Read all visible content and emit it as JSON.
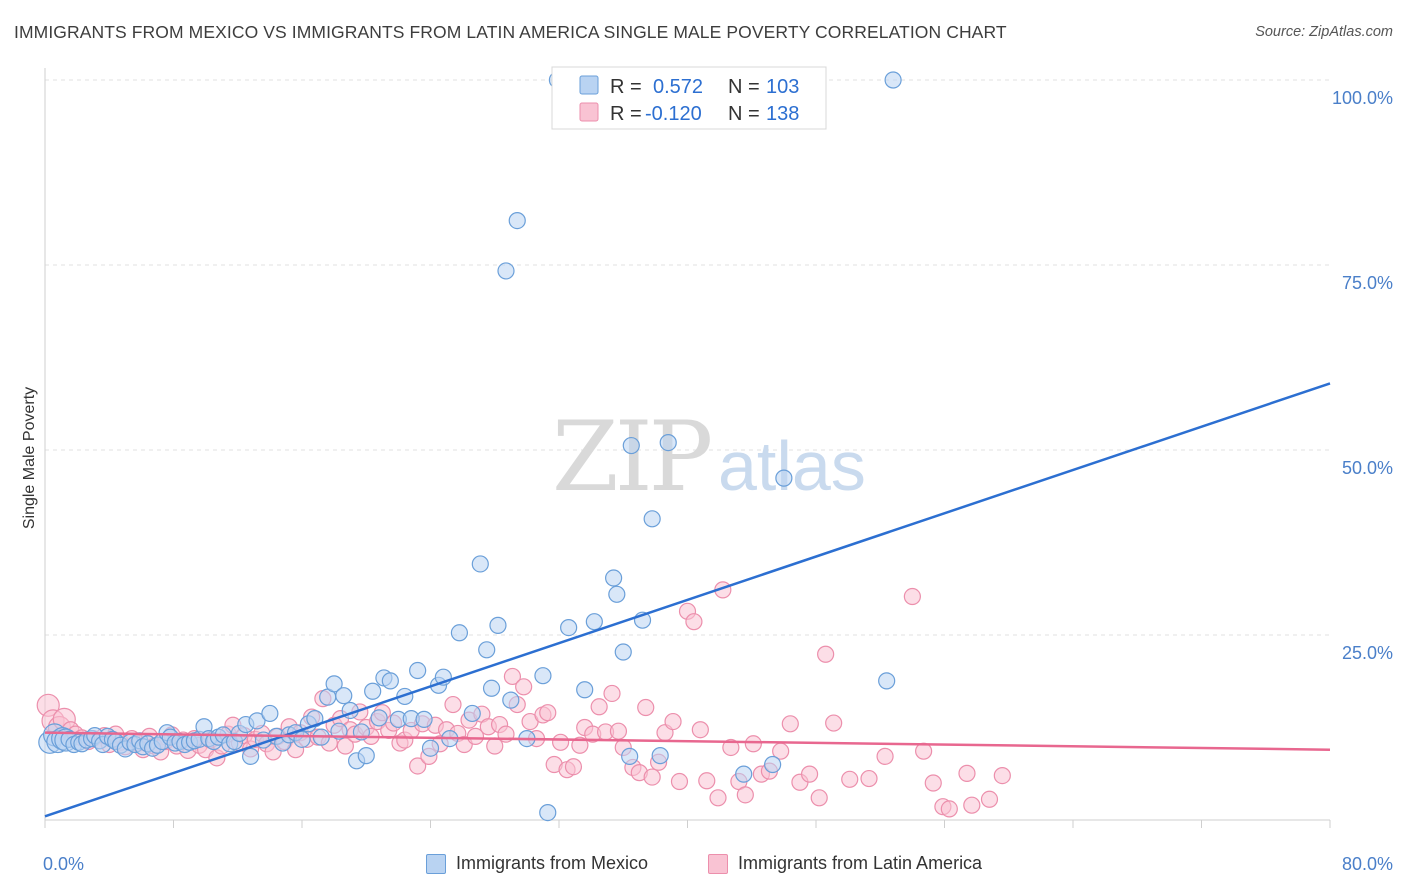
{
  "header": {
    "title": "IMMIGRANTS FROM MEXICO VS IMMIGRANTS FROM LATIN AMERICA SINGLE MALE POVERTY CORRELATION CHART",
    "source": "Source: ZipAtlas.com"
  },
  "watermark": {
    "zip": "ZIP",
    "atlas": "atlas"
  },
  "colors": {
    "blue_fill": "#b9d3f2",
    "blue_stroke": "#6a9fd9",
    "blue_line": "#2c6fd1",
    "pink_fill": "#f9c3d3",
    "pink_stroke": "#ec8fac",
    "pink_line": "#e8678f",
    "tick_text": "#4a7fc9",
    "grid": "#e2e2e2"
  },
  "legend_top": {
    "rows": [
      {
        "r_label": "R =",
        "r_value": "0.572",
        "n_label": "N =",
        "n_value": "103"
      },
      {
        "r_label": "R =",
        "r_value": "-0.120",
        "n_label": "N =",
        "n_value": "138"
      }
    ]
  },
  "bottom_legend": [
    "Immigrants from Mexico",
    "Immigrants from Latin America"
  ],
  "chart_data": {
    "type": "scatter",
    "title": "IMMIGRANTS FROM MEXICO VS IMMIGRANTS FROM LATIN AMERICA SINGLE MALE POVERTY CORRELATION CHART",
    "xlabel": "",
    "ylabel": "Single Male Poverty",
    "xlim": [
      0,
      80
    ],
    "ylim": [
      0,
      100
    ],
    "x_ticks_labeled": [
      "0.0%",
      "80.0%"
    ],
    "y_ticks_labeled": [
      "25.0%",
      "50.0%",
      "75.0%",
      "100.0%"
    ],
    "y_tick_values": [
      25,
      50,
      75,
      100
    ],
    "x_tick_values": [
      0,
      8,
      16,
      24,
      32,
      40,
      48,
      56,
      64,
      72,
      80
    ],
    "grid": "horizontal dashed",
    "legend_position": "top-center",
    "series": [
      {
        "name": "Immigrants from Mexico",
        "color": "#b9d3f2",
        "R": 0.572,
        "N": 103,
        "trend": {
          "x": [
            0,
            80
          ],
          "y": [
            0.5,
            59.0
          ]
        },
        "points": [
          [
            0.3,
            10.5
          ],
          [
            0.6,
            11.5
          ],
          [
            0.8,
            10.6
          ],
          [
            1.1,
            11.0
          ],
          [
            1.3,
            10.8
          ],
          [
            1.5,
            10.9
          ],
          [
            1.8,
            10.2
          ],
          [
            2.1,
            10.5
          ],
          [
            2.3,
            10.3
          ],
          [
            2.6,
            10.8
          ],
          [
            2.9,
            11.0
          ],
          [
            3.1,
            11.4
          ],
          [
            3.4,
            10.7
          ],
          [
            3.6,
            10.2
          ],
          [
            3.9,
            11.3
          ],
          [
            4.2,
            10.9
          ],
          [
            4.4,
            10.6
          ],
          [
            4.7,
            10.1
          ],
          [
            5.0,
            9.6
          ],
          [
            5.3,
            10.5
          ],
          [
            5.6,
            10.2
          ],
          [
            5.9,
            10.7
          ],
          [
            6.1,
            9.9
          ],
          [
            6.4,
            10.3
          ],
          [
            6.7,
            9.7
          ],
          [
            7.0,
            10.1
          ],
          [
            7.3,
            10.6
          ],
          [
            7.6,
            11.8
          ],
          [
            7.8,
            11.2
          ],
          [
            8.1,
            10.4
          ],
          [
            8.4,
            10.6
          ],
          [
            8.7,
            10.2
          ],
          [
            9.0,
            10.5
          ],
          [
            9.3,
            10.7
          ],
          [
            9.6,
            10.9
          ],
          [
            9.9,
            12.6
          ],
          [
            10.2,
            11.0
          ],
          [
            10.5,
            10.6
          ],
          [
            10.8,
            11.2
          ],
          [
            11.1,
            11.5
          ],
          [
            11.5,
            10.3
          ],
          [
            11.8,
            10.6
          ],
          [
            12.1,
            11.7
          ],
          [
            12.5,
            12.9
          ],
          [
            12.8,
            8.6
          ],
          [
            13.2,
            13.4
          ],
          [
            13.6,
            10.8
          ],
          [
            14.0,
            14.4
          ],
          [
            14.4,
            11.3
          ],
          [
            14.8,
            10.4
          ],
          [
            15.2,
            11.5
          ],
          [
            15.6,
            11.8
          ],
          [
            16.0,
            10.9
          ],
          [
            16.4,
            13.0
          ],
          [
            16.8,
            13.7
          ],
          [
            17.2,
            11.2
          ],
          [
            17.6,
            16.6
          ],
          [
            18.0,
            18.4
          ],
          [
            18.3,
            12.0
          ],
          [
            18.6,
            16.8
          ],
          [
            19.0,
            14.8
          ],
          [
            19.4,
            8.0
          ],
          [
            19.7,
            11.9
          ],
          [
            20.0,
            8.7
          ],
          [
            20.4,
            17.4
          ],
          [
            20.8,
            13.8
          ],
          [
            21.1,
            19.2
          ],
          [
            21.5,
            18.8
          ],
          [
            22.0,
            13.6
          ],
          [
            22.4,
            16.7
          ],
          [
            22.8,
            13.7
          ],
          [
            23.2,
            20.2
          ],
          [
            23.6,
            13.6
          ],
          [
            24.0,
            9.7
          ],
          [
            24.5,
            18.2
          ],
          [
            24.8,
            19.3
          ],
          [
            25.2,
            11.0
          ],
          [
            25.8,
            25.3
          ],
          [
            26.6,
            14.4
          ],
          [
            27.1,
            34.6
          ],
          [
            27.5,
            23.0
          ],
          [
            27.8,
            17.8
          ],
          [
            28.2,
            26.3
          ],
          [
            28.7,
            74.2
          ],
          [
            29.4,
            81.0
          ],
          [
            29.0,
            16.2
          ],
          [
            30.0,
            11.0
          ],
          [
            31.0,
            19.5
          ],
          [
            31.3,
            1.0
          ],
          [
            32.6,
            26.0
          ],
          [
            33.6,
            17.6
          ],
          [
            34.2,
            26.8
          ],
          [
            35.4,
            32.7
          ],
          [
            36.0,
            22.7
          ],
          [
            31.9,
            100
          ],
          [
            35.6,
            30.5
          ],
          [
            36.5,
            50.6
          ],
          [
            37.2,
            27.0
          ],
          [
            36.4,
            8.6
          ],
          [
            37.8,
            40.7
          ],
          [
            38.8,
            51.0
          ],
          [
            41.1,
            100
          ],
          [
            42.0,
            100
          ],
          [
            46.3,
            100
          ],
          [
            52.8,
            100
          ],
          [
            46.0,
            46.2
          ],
          [
            38.3,
            8.7
          ],
          [
            43.5,
            6.2
          ],
          [
            45.3,
            7.5
          ],
          [
            52.4,
            18.8
          ]
        ]
      },
      {
        "name": "Immigrants from Latin America",
        "color": "#f9c3d3",
        "R": -0.12,
        "N": 138,
        "trend": {
          "x": [
            0,
            80
          ],
          "y": [
            11.8,
            9.5
          ]
        },
        "points": [
          [
            0.2,
            15.5
          ],
          [
            0.5,
            13.4
          ],
          [
            0.9,
            12.5
          ],
          [
            1.2,
            13.6
          ],
          [
            1.6,
            12.2
          ],
          [
            1.9,
            11.6
          ],
          [
            2.3,
            11.1
          ],
          [
            2.7,
            10.6
          ],
          [
            3.0,
            11.0
          ],
          [
            3.4,
            10.7
          ],
          [
            3.7,
            11.4
          ],
          [
            4.0,
            10.2
          ],
          [
            4.4,
            11.6
          ],
          [
            4.7,
            10.5
          ],
          [
            5.0,
            9.9
          ],
          [
            5.4,
            11.0
          ],
          [
            5.8,
            10.4
          ],
          [
            6.1,
            9.5
          ],
          [
            6.5,
            11.3
          ],
          [
            6.8,
            10.0
          ],
          [
            7.2,
            9.2
          ],
          [
            7.5,
            10.6
          ],
          [
            7.9,
            11.5
          ],
          [
            8.2,
            10.0
          ],
          [
            8.6,
            10.8
          ],
          [
            8.9,
            9.4
          ],
          [
            9.3,
            11.0
          ],
          [
            9.6,
            10.1
          ],
          [
            10.0,
            9.5
          ],
          [
            10.3,
            10.8
          ],
          [
            10.7,
            8.4
          ],
          [
            11.0,
            10.0
          ],
          [
            11.4,
            11.6
          ],
          [
            11.7,
            12.8
          ],
          [
            12.1,
            10.4
          ],
          [
            12.4,
            11.4
          ],
          [
            12.8,
            9.6
          ],
          [
            13.1,
            10.9
          ],
          [
            13.5,
            11.7
          ],
          [
            13.8,
            10.3
          ],
          [
            14.2,
            9.2
          ],
          [
            14.5,
            11.3
          ],
          [
            14.9,
            10.6
          ],
          [
            15.2,
            12.6
          ],
          [
            15.6,
            9.5
          ],
          [
            15.9,
            11.8
          ],
          [
            16.3,
            10.9
          ],
          [
            16.6,
            13.9
          ],
          [
            17.0,
            11.2
          ],
          [
            17.3,
            16.4
          ],
          [
            17.7,
            10.4
          ],
          [
            18.0,
            12.8
          ],
          [
            18.4,
            13.7
          ],
          [
            18.7,
            10.0
          ],
          [
            19.0,
            12.2
          ],
          [
            19.3,
            11.6
          ],
          [
            19.6,
            14.6
          ],
          [
            20.0,
            12.5
          ],
          [
            20.3,
            11.3
          ],
          [
            20.7,
            13.3
          ],
          [
            21.0,
            14.5
          ],
          [
            21.4,
            12.1
          ],
          [
            21.7,
            13.1
          ],
          [
            22.1,
            10.4
          ],
          [
            22.4,
            10.8
          ],
          [
            22.8,
            12.1
          ],
          [
            23.2,
            7.3
          ],
          [
            23.5,
            13.0
          ],
          [
            23.9,
            8.6
          ],
          [
            24.3,
            12.8
          ],
          [
            24.6,
            10.3
          ],
          [
            25.0,
            12.2
          ],
          [
            25.4,
            15.6
          ],
          [
            25.7,
            11.7
          ],
          [
            26.1,
            10.2
          ],
          [
            26.4,
            13.5
          ],
          [
            26.8,
            11.3
          ],
          [
            27.2,
            14.3
          ],
          [
            27.6,
            12.6
          ],
          [
            28.0,
            10.0
          ],
          [
            28.3,
            12.9
          ],
          [
            28.7,
            11.6
          ],
          [
            29.1,
            19.4
          ],
          [
            29.4,
            15.6
          ],
          [
            29.8,
            18.0
          ],
          [
            30.2,
            13.3
          ],
          [
            30.6,
            11.0
          ],
          [
            31.0,
            14.2
          ],
          [
            31.3,
            14.5
          ],
          [
            31.7,
            7.5
          ],
          [
            32.1,
            10.5
          ],
          [
            32.5,
            6.8
          ],
          [
            32.9,
            7.2
          ],
          [
            33.3,
            10.1
          ],
          [
            33.6,
            12.5
          ],
          [
            34.1,
            11.6
          ],
          [
            34.5,
            15.3
          ],
          [
            34.9,
            11.9
          ],
          [
            35.3,
            17.1
          ],
          [
            35.7,
            12.0
          ],
          [
            36.0,
            9.8
          ],
          [
            36.6,
            7.1
          ],
          [
            37.0,
            6.4
          ],
          [
            37.4,
            15.2
          ],
          [
            37.8,
            5.8
          ],
          [
            38.2,
            7.8
          ],
          [
            38.6,
            11.8
          ],
          [
            39.1,
            13.3
          ],
          [
            39.5,
            5.2
          ],
          [
            40.0,
            28.2
          ],
          [
            40.4,
            26.8
          ],
          [
            40.8,
            12.2
          ],
          [
            41.2,
            5.3
          ],
          [
            41.9,
            3.0
          ],
          [
            42.2,
            31.1
          ],
          [
            42.7,
            9.8
          ],
          [
            43.2,
            5.2
          ],
          [
            43.6,
            3.4
          ],
          [
            44.1,
            10.3
          ],
          [
            44.6,
            6.2
          ],
          [
            45.1,
            6.6
          ],
          [
            45.8,
            9.3
          ],
          [
            46.4,
            13.0
          ],
          [
            47.0,
            5.1
          ],
          [
            47.6,
            6.2
          ],
          [
            48.2,
            3.0
          ],
          [
            48.6,
            22.4
          ],
          [
            49.1,
            13.1
          ],
          [
            50.1,
            5.5
          ],
          [
            51.3,
            5.6
          ],
          [
            52.3,
            8.6
          ],
          [
            54.0,
            30.2
          ],
          [
            54.7,
            9.3
          ],
          [
            55.3,
            5.0
          ],
          [
            55.9,
            1.8
          ],
          [
            56.3,
            1.5
          ],
          [
            57.4,
            6.3
          ],
          [
            57.7,
            2.0
          ],
          [
            58.8,
            2.8
          ],
          [
            59.6,
            6.0
          ]
        ]
      }
    ]
  }
}
